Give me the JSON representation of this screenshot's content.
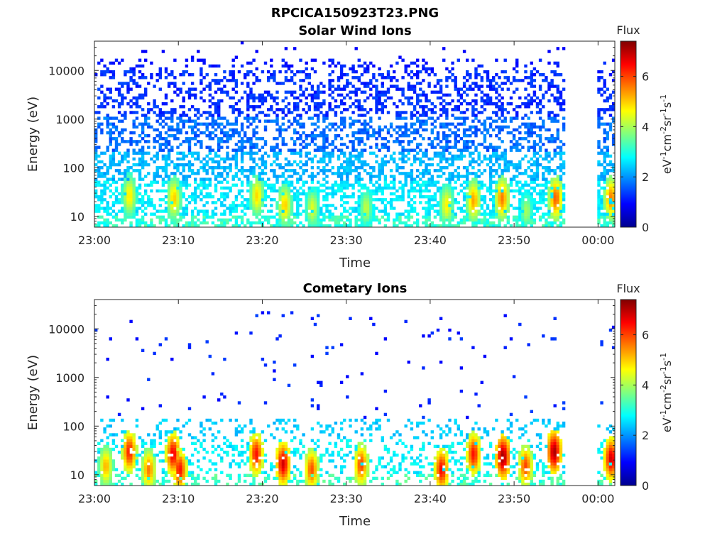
{
  "figure_title": "RPCICA150923T23.PNG",
  "chart_data": [
    {
      "type": "heatmap",
      "title": "Solar Wind Ions",
      "xlabel": "Time",
      "ylabel": "Energy (eV)",
      "x_tick_labels": [
        "23:00",
        "23:10",
        "23:20",
        "23:30",
        "23:40",
        "23:50",
        "00:00"
      ],
      "x_tick_minutes": [
        0,
        10,
        20,
        30,
        40,
        50,
        60
      ],
      "xlim_minutes": [
        0,
        62
      ],
      "y_scale": "log",
      "y_tick_labels": [
        "10",
        "100",
        "1000",
        "10000"
      ],
      "y_tick_values": [
        10,
        100,
        1000,
        10000
      ],
      "ylim": [
        6,
        40000
      ],
      "data_gap_minutes": [
        56,
        59.8
      ],
      "colorbar": {
        "title": "Flux",
        "label": "eV-1cm-2sr-1s-1",
        "ticks": [
          0,
          2,
          4,
          6
        ],
        "range": [
          0,
          7.4
        ]
      },
      "hotspots": [
        {
          "minute": 4,
          "energy": 25,
          "flux": 4.8
        },
        {
          "minute": 9.3,
          "energy": 22,
          "flux": 5.0
        },
        {
          "minute": 19.2,
          "energy": 25,
          "flux": 4.9
        },
        {
          "minute": 22.5,
          "energy": 16,
          "flux": 5.0
        },
        {
          "minute": 25.8,
          "energy": 14,
          "flux": 4.4
        },
        {
          "minute": 32.2,
          "energy": 14,
          "flux": 4.2
        },
        {
          "minute": 41.8,
          "energy": 16,
          "flux": 4.7
        },
        {
          "minute": 45,
          "energy": 20,
          "flux": 5.3
        },
        {
          "minute": 48.4,
          "energy": 22,
          "flux": 5.6
        },
        {
          "minute": 51.3,
          "energy": 12,
          "flux": 4.0
        },
        {
          "minute": 54.8,
          "energy": 22,
          "flux": 5.8
        },
        {
          "minute": 61.4,
          "energy": 22,
          "flux": 5.6
        }
      ]
    },
    {
      "type": "heatmap",
      "title": "Cometary Ions",
      "xlabel": "Time",
      "ylabel": "Energy (eV)",
      "x_tick_labels": [
        "23:00",
        "23:10",
        "23:20",
        "23:30",
        "23:40",
        "23:50",
        "00:00"
      ],
      "x_tick_minutes": [
        0,
        10,
        20,
        30,
        40,
        50,
        60
      ],
      "xlim_minutes": [
        0,
        62
      ],
      "y_scale": "log",
      "y_tick_labels": [
        "10",
        "100",
        "1000",
        "10000"
      ],
      "y_tick_values": [
        10,
        100,
        1000,
        10000
      ],
      "ylim": [
        6,
        40000
      ],
      "data_gap_minutes": [
        56,
        59.8
      ],
      "colorbar": {
        "title": "Flux",
        "label": "eV-1cm-2sr-1s-1",
        "ticks": [
          0,
          2,
          4,
          6
        ],
        "range": [
          0,
          7.4
        ]
      },
      "hotspots": [
        {
          "minute": 1.2,
          "energy": 14,
          "flux": 5.2
        },
        {
          "minute": 4,
          "energy": 28,
          "flux": 6.3
        },
        {
          "minute": 6.3,
          "energy": 12,
          "flux": 5.6
        },
        {
          "minute": 9.2,
          "energy": 25,
          "flux": 6.6
        },
        {
          "minute": 10,
          "energy": 12,
          "flux": 6.4
        },
        {
          "minute": 19.1,
          "energy": 25,
          "flux": 6.4
        },
        {
          "minute": 22.3,
          "energy": 16,
          "flux": 6.8
        },
        {
          "minute": 25.7,
          "energy": 12,
          "flux": 5.9
        },
        {
          "minute": 31.6,
          "energy": 15,
          "flux": 6.0
        },
        {
          "minute": 41.2,
          "energy": 12,
          "flux": 6.5
        },
        {
          "minute": 45,
          "energy": 25,
          "flux": 6.4
        },
        {
          "minute": 48.5,
          "energy": 22,
          "flux": 7.2
        },
        {
          "minute": 51.2,
          "energy": 14,
          "flux": 6.0
        },
        {
          "minute": 54.6,
          "energy": 28,
          "flux": 7.1
        },
        {
          "minute": 61.4,
          "energy": 20,
          "flux": 6.8
        }
      ]
    }
  ]
}
